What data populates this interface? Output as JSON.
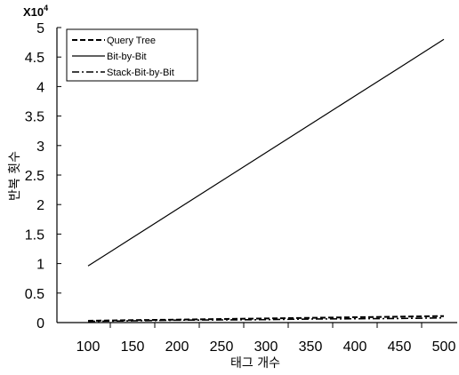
{
  "chart_data": {
    "type": "line",
    "title": "",
    "xlabel": "태그 개수",
    "ylabel": "반복 횟수",
    "y_multiplier": "X10",
    "y_multiplier_exp": "4",
    "xlim": [
      65,
      515
    ],
    "ylim": [
      0,
      5
    ],
    "x_ticks": [
      100,
      150,
      200,
      250,
      300,
      350,
      400,
      450,
      500
    ],
    "y_ticks": [
      0,
      0.5,
      1,
      1.5,
      2,
      2.5,
      3,
      3.5,
      4,
      4.5,
      5
    ],
    "x_tick_labels": [
      "100",
      "150",
      "200",
      "250",
      "300",
      "350",
      "400",
      "450",
      "500"
    ],
    "y_tick_labels": [
      "0",
      "0.5",
      "1",
      "1.5",
      "2",
      "2.5",
      "3",
      "3.5",
      "4",
      "4.5",
      "5"
    ],
    "grid": false,
    "legend_position": "top-left",
    "series": [
      {
        "name": "Query Tree",
        "style": "dashed",
        "x": [
          100,
          150,
          200,
          250,
          300,
          350,
          400,
          450,
          500
        ],
        "y": [
          0.03,
          0.04,
          0.05,
          0.06,
          0.07,
          0.08,
          0.09,
          0.1,
          0.11
        ]
      },
      {
        "name": "Bit-by-Bit",
        "style": "solid",
        "x": [
          100,
          150,
          200,
          250,
          300,
          350,
          400,
          450,
          500
        ],
        "y": [
          0.96,
          1.44,
          1.92,
          2.4,
          2.88,
          3.36,
          3.84,
          4.32,
          4.8
        ]
      },
      {
        "name": "Stack-Bit-by-Bit",
        "style": "dashdot",
        "x": [
          100,
          150,
          200,
          250,
          300,
          350,
          400,
          450,
          500
        ],
        "y": [
          0.02,
          0.03,
          0.04,
          0.045,
          0.05,
          0.06,
          0.065,
          0.07,
          0.08
        ]
      }
    ],
    "colors": {
      "line": "#000000",
      "background": "#ffffff"
    }
  }
}
